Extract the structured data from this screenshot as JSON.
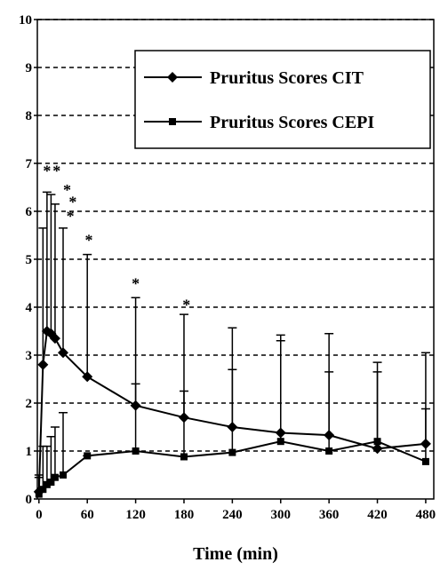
{
  "chart_data": {
    "type": "line",
    "x_label": "Time (min)",
    "xlim": [
      -2,
      490
    ],
    "xticks": [
      0,
      60,
      120,
      180,
      240,
      300,
      360,
      420,
      480
    ],
    "ylim": [
      0,
      10
    ],
    "yticks": [
      0,
      1,
      2,
      3,
      4,
      5,
      6,
      7,
      8,
      9,
      10
    ],
    "grid": true,
    "legend": "upper right",
    "series": [
      {
        "name": "Pruritus Scores CIT",
        "color": "#000000",
        "marker": "diamond",
        "x": [
          0,
          5,
          10,
          15,
          20,
          30,
          60,
          120,
          180,
          240,
          300,
          360,
          420,
          480
        ],
        "values": [
          0.15,
          2.8,
          3.5,
          3.45,
          3.35,
          3.05,
          2.55,
          1.95,
          1.7,
          1.5,
          1.38,
          1.33,
          1.05,
          1.15
        ],
        "errors": [
          0.3,
          2.85,
          2.9,
          2.9,
          2.8,
          2.6,
          2.55,
          2.25,
          2.15,
          2.07,
          2.04,
          2.12,
          1.8,
          1.9
        ]
      },
      {
        "name": "Pruritus Scores CEPI",
        "color": "#000000",
        "marker": "square",
        "x": [
          0,
          5,
          10,
          15,
          20,
          30,
          60,
          120,
          180,
          240,
          300,
          360,
          420,
          480
        ],
        "values": [
          0.1,
          0.2,
          0.3,
          0.35,
          0.45,
          0.5,
          0.9,
          1.0,
          0.88,
          0.97,
          1.2,
          1.0,
          1.2,
          0.78
        ],
        "errors": [
          0.4,
          0.9,
          0.8,
          0.95,
          1.05,
          1.3,
          0.0,
          1.4,
          1.37,
          1.73,
          2.1,
          1.65,
          1.45,
          1.1
        ]
      }
    ],
    "annotations": [
      {
        "text": "*",
        "x": 10,
        "y": 6.9
      },
      {
        "text": "*",
        "x": 22,
        "y": 6.9
      },
      {
        "text": "*",
        "x": 35,
        "y": 6.5
      },
      {
        "text": "*",
        "x": 42,
        "y": 6.25
      },
      {
        "text": "*",
        "x": 39,
        "y": 5.95
      },
      {
        "text": "*",
        "x": 62,
        "y": 5.45
      },
      {
        "text": "*",
        "x": 120,
        "y": 4.55
      },
      {
        "text": "*",
        "x": 183,
        "y": 4.1
      }
    ]
  }
}
